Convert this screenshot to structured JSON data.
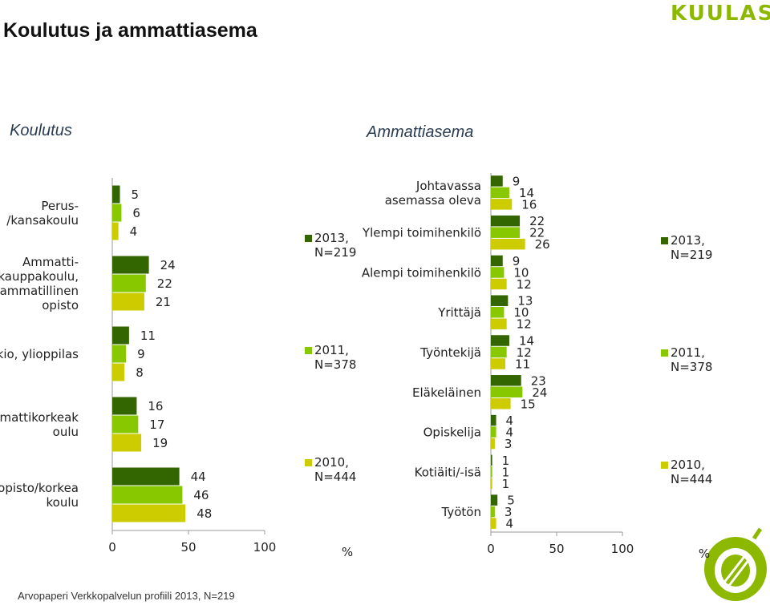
{
  "header": {
    "title": "Koulutus ja ammattiasema",
    "logo_text": "KUULAS"
  },
  "sections": {
    "left": "Koulutus",
    "right": "Ammattiasema"
  },
  "colors": {
    "s2013": "#336600",
    "s2011": "#88c800",
    "s2010": "#cccc00",
    "logo": "#8cb800"
  },
  "chart_data": [
    {
      "type": "bar",
      "orientation": "horizontal",
      "title": "Koulutus",
      "categories": [
        [
          "Perus-",
          "/kansakoulu"
        ],
        [
          "Ammatti-",
          "/kauppakoulu,",
          "ammatillinen",
          "opisto"
        ],
        [
          "Lukio, ylioppilas"
        ],
        [
          "Ammattikorkeak",
          "oulu"
        ],
        [
          "Yliopisto/korkea",
          "koulu"
        ]
      ],
      "series": [
        {
          "name": "2013, N=219",
          "values": [
            5,
            24,
            11,
            16,
            44
          ]
        },
        {
          "name": "2011, N=378",
          "values": [
            6,
            22,
            9,
            17,
            46
          ]
        },
        {
          "name": "2010, N=444",
          "values": [
            4,
            21,
            8,
            19,
            48
          ]
        }
      ],
      "xlim": [
        0,
        100
      ],
      "xticks": [
        "0",
        "50",
        "100"
      ],
      "unit": "%"
    },
    {
      "type": "bar",
      "orientation": "horizontal",
      "title": "Ammattiasema",
      "categories": [
        [
          "Johtavassa",
          "asemassa oleva"
        ],
        [
          "Ylempi toimihenkilö"
        ],
        [
          "Alempi toimihenkilö"
        ],
        [
          "Yrittäjä"
        ],
        [
          "Työntekijä"
        ],
        [
          "Eläkeläinen"
        ],
        [
          "Opiskelija"
        ],
        [
          "Kotiäiti/-isä"
        ],
        [
          "Työtön"
        ]
      ],
      "series": [
        {
          "name": "2013, N=219",
          "values": [
            9,
            22,
            9,
            13,
            14,
            23,
            4,
            1,
            5
          ]
        },
        {
          "name": "2011, N=378",
          "values": [
            14,
            22,
            10,
            10,
            12,
            24,
            4,
            1,
            3
          ]
        },
        {
          "name": "2010, N=444",
          "values": [
            16,
            26,
            12,
            12,
            11,
            15,
            3,
            1,
            4
          ]
        }
      ],
      "xlim": [
        0,
        100
      ],
      "xticks": [
        "0",
        "50",
        "100"
      ],
      "unit": "%"
    }
  ],
  "legend": {
    "entries": [
      [
        "2013,",
        "N=219"
      ],
      [
        "2011,",
        "N=378"
      ],
      [
        "2010,",
        "N=444"
      ]
    ]
  },
  "footer": "Arvopaperi Verkkopalvelun profiili 2013, N=219"
}
